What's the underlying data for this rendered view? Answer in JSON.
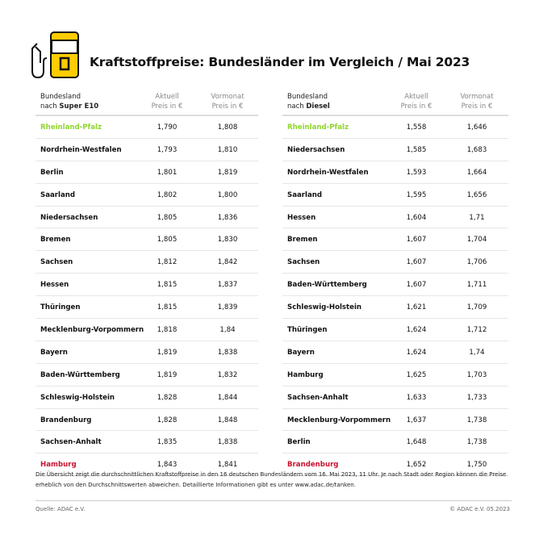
{
  "title": "Kraftstoffpreise: Bundesländer im Vergleich / Mai 2023",
  "colors": {
    "accent": "#ffcc00",
    "best": "#8fd62c",
    "worst": "#c8102e"
  },
  "icon": "fuel-pump-icon",
  "tables": [
    {
      "header": {
        "name_line1": "Bundesland",
        "name_prefix": "nach ",
        "fuel": "Super E10",
        "current_1": "Aktuell",
        "current_2": "Preis in €",
        "prev_1": "Vormonat",
        "prev_2": "Preis in €"
      },
      "rows": [
        [
          "Rheinland-Pfalz",
          "1,790",
          "1,808"
        ],
        [
          "Nordrhein-Westfalen",
          "1,793",
          "1,810"
        ],
        [
          "Berlin",
          "1,801",
          "1,819"
        ],
        [
          "Saarland",
          "1,802",
          "1,800"
        ],
        [
          "Niedersachsen",
          "1,805",
          "1,836"
        ],
        [
          "Bremen",
          "1,805",
          "1,830"
        ],
        [
          "Sachsen",
          "1,812",
          "1,842"
        ],
        [
          "Hessen",
          "1,815",
          "1,837"
        ],
        [
          "Thüringen",
          "1,815",
          "1,839"
        ],
        [
          "Mecklenburg-Vorpommern",
          "1,818",
          "1,84"
        ],
        [
          "Bayern",
          "1,819",
          "1,838"
        ],
        [
          "Baden-Württemberg",
          "1,819",
          "1,832"
        ],
        [
          "Schleswig-Holstein",
          "1,828",
          "1,844"
        ],
        [
          "Brandenburg",
          "1,828",
          "1,848"
        ],
        [
          "Sachsen-Anhalt",
          "1,835",
          "1,838"
        ],
        [
          "Hamburg",
          "1,843",
          "1,841"
        ]
      ]
    },
    {
      "header": {
        "name_line1": "Bundesland",
        "name_prefix": "nach ",
        "fuel": "Diesel",
        "current_1": "Aktuell",
        "current_2": "Preis in €",
        "prev_1": "Vormonat",
        "prev_2": "Preis in €"
      },
      "rows": [
        [
          "Rheinland-Pfalz",
          "1,558",
          "1,646"
        ],
        [
          "Niedersachsen",
          "1,585",
          "1,683"
        ],
        [
          "Nordrhein-Westfalen",
          "1,593",
          "1,664"
        ],
        [
          "Saarland",
          "1,595",
          "1,656"
        ],
        [
          "Hessen",
          "1,604",
          "1,71"
        ],
        [
          "Bremen",
          "1,607",
          "1,704"
        ],
        [
          "Sachsen",
          "1,607",
          "1,706"
        ],
        [
          "Baden-Württemberg",
          "1,607",
          "1,711"
        ],
        [
          "Schleswig-Holstein",
          "1,621",
          "1,709"
        ],
        [
          "Thüringen",
          "1,624",
          "1,712"
        ],
        [
          "Bayern",
          "1,624",
          "1,74"
        ],
        [
          "Hamburg",
          "1,625",
          "1,703"
        ],
        [
          "Sachsen-Anhalt",
          "1,633",
          "1,733"
        ],
        [
          "Mecklenburg-Vorpommern",
          "1,637",
          "1,738"
        ],
        [
          "Berlin",
          "1,648",
          "1,738"
        ],
        [
          "Brandenburg",
          "1,652",
          "1,750"
        ]
      ]
    }
  ],
  "note": "Die Übersicht zeigt die durchschnittlichen Kraftstoffpreise in den 16 deutschen Bundesländern vom 16. Mai 2023, 11 Uhr. Je nach Stadt oder Region können die Preise erheblich von den Durchschnittswerten abweichen. Detaillierte Informationen gibt es unter www.adac.de/tanken.",
  "source": "Quelle: ADAC e.V.",
  "copyright": "© ADAC e.V. 05.2023"
}
